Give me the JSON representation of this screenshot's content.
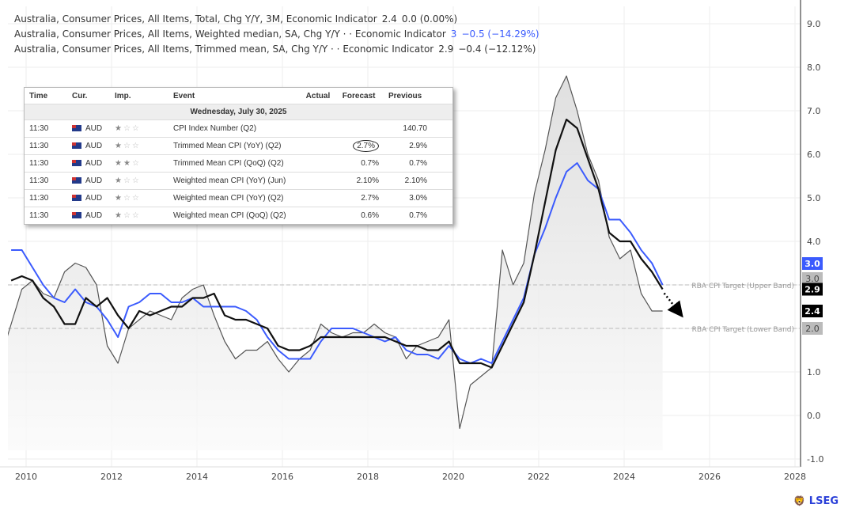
{
  "legend": [
    {
      "name": "Australia, Consumer Prices, All Items, Total, Chg Y/Y, 3M, Economic Indicator",
      "value": "2.4",
      "change": "0.0 (0.00%)",
      "color": "#555555"
    },
    {
      "name": "Australia, Consumer Prices, All Items, Weighted median, SA, Chg Y/Y · · Economic Indicator",
      "value": "3",
      "change": "−0.5 (−14.29%)",
      "color": "#3b5bfd"
    },
    {
      "name": "Australia, Consumer Prices, All Items, Trimmed mean, SA, Chg Y/Y · · Economic Indicator",
      "value": "2.9",
      "change": "−0.4 (−12.12%)",
      "color": "#111111"
    }
  ],
  "calendar": {
    "headers": {
      "time": "Time",
      "cur": "Cur.",
      "imp": "Imp.",
      "event": "Event",
      "actual": "Actual",
      "forecast": "Forecast",
      "previous": "Previous"
    },
    "date": "Wednesday, July 30, 2025",
    "rows": [
      {
        "time": "11:30",
        "cur": "AUD",
        "imp": 1,
        "event": "CPI Index Number (Q2)",
        "actual": "",
        "forecast": "",
        "previous": "140.70"
      },
      {
        "time": "11:30",
        "cur": "AUD",
        "imp": 1,
        "event": "Trimmed Mean CPI (YoY) (Q2)",
        "actual": "",
        "forecast": "2.7%",
        "previous": "2.9%",
        "highlight": true
      },
      {
        "time": "11:30",
        "cur": "AUD",
        "imp": 2,
        "event": "Trimmed Mean CPI (QoQ) (Q2)",
        "actual": "",
        "forecast": "0.7%",
        "previous": "0.7%"
      },
      {
        "time": "11:30",
        "cur": "AUD",
        "imp": 1,
        "event": "Weighted mean CPI (YoY) (Jun)",
        "actual": "",
        "forecast": "2.10%",
        "previous": "2.10%"
      },
      {
        "time": "11:30",
        "cur": "AUD",
        "imp": 1,
        "event": "Weighted mean CPI (YoY) (Q2)",
        "actual": "",
        "forecast": "2.7%",
        "previous": "3.0%"
      },
      {
        "time": "11:30",
        "cur": "AUD",
        "imp": 1,
        "event": "Weighted mean CPI (QoQ) (Q2)",
        "actual": "",
        "forecast": "0.6%",
        "previous": "0.7%"
      }
    ]
  },
  "brand": "LSEG",
  "chart_data": {
    "type": "line",
    "xlim": [
      2009.6,
      2028.1
    ],
    "ylim": [
      -1.2,
      9.4
    ],
    "x_ticks": [
      "2010",
      "2012",
      "2014",
      "2016",
      "2018",
      "2020",
      "2022",
      "2024",
      "2026",
      "2028"
    ],
    "y_ticks": [
      "9.0",
      "8.0",
      "7.0",
      "6.0",
      "5.0",
      "4.0",
      "3.0",
      "2.0",
      "1.0",
      "0.0",
      "-1.0"
    ],
    "grid": true,
    "start_quarter": "2009Q3",
    "series": [
      {
        "name": "Australia, Consumer Prices, All Items, Total, Chg Y/Y, 3M",
        "color": "#555555",
        "values": [
          1.3,
          2.1,
          2.9,
          3.1,
          2.8,
          2.7,
          3.3,
          3.5,
          3.4,
          3.0,
          1.6,
          1.2,
          2.0,
          2.2,
          2.4,
          2.3,
          2.2,
          2.7,
          2.9,
          3.0,
          2.3,
          1.7,
          1.3,
          1.5,
          1.5,
          1.7,
          1.3,
          1.0,
          1.3,
          1.5,
          2.1,
          1.9,
          1.8,
          1.9,
          1.9,
          2.1,
          1.9,
          1.8,
          1.3,
          1.6,
          1.7,
          1.8,
          2.2,
          -0.3,
          0.7,
          0.9,
          1.1,
          3.8,
          3.0,
          3.5,
          5.1,
          6.1,
          7.3,
          7.8,
          7.0,
          6.0,
          5.4,
          4.1,
          3.6,
          3.8,
          2.8,
          2.4,
          2.4
        ]
      },
      {
        "name": "Australia, Consumer Prices, All Items, Weighted median, SA, Chg Y/Y",
        "color": "#3b5bfd",
        "values": [
          null,
          3.8,
          3.8,
          3.4,
          3.0,
          2.7,
          2.6,
          2.9,
          2.6,
          2.5,
          2.2,
          1.8,
          2.5,
          2.6,
          2.8,
          2.8,
          2.6,
          2.6,
          2.7,
          2.5,
          2.5,
          2.5,
          2.5,
          2.4,
          2.2,
          1.8,
          1.5,
          1.3,
          1.3,
          1.3,
          1.7,
          2.0,
          2.0,
          2.0,
          1.9,
          1.8,
          1.7,
          1.8,
          1.5,
          1.4,
          1.4,
          1.3,
          1.6,
          1.3,
          1.2,
          1.3,
          1.2,
          1.7,
          2.2,
          2.7,
          3.7,
          4.3,
          5.0,
          5.6,
          5.8,
          5.4,
          5.2,
          4.5,
          4.5,
          4.2,
          3.8,
          3.5,
          3.0
        ]
      },
      {
        "name": "Australia, Consumer Prices, All Items, Trimmed mean, SA, Chg Y/Y",
        "color": "#111111",
        "values": [
          null,
          3.1,
          3.2,
          3.1,
          2.7,
          2.5,
          2.1,
          2.1,
          2.7,
          2.5,
          2.7,
          2.3,
          2.0,
          2.4,
          2.3,
          2.4,
          2.5,
          2.5,
          2.7,
          2.7,
          2.8,
          2.3,
          2.2,
          2.2,
          2.1,
          2.0,
          1.6,
          1.5,
          1.5,
          1.6,
          1.8,
          1.8,
          1.8,
          1.8,
          1.8,
          1.8,
          1.8,
          1.7,
          1.6,
          1.6,
          1.5,
          1.5,
          1.7,
          1.2,
          1.2,
          1.2,
          1.1,
          1.6,
          2.1,
          2.6,
          3.7,
          4.9,
          6.1,
          6.8,
          6.6,
          5.9,
          5.2,
          4.2,
          4.0,
          4.0,
          3.6,
          3.3,
          2.9
        ]
      }
    ],
    "reference_lines": [
      {
        "label": "RBA CPI Target (Upper Band)",
        "value": 3.0,
        "tag": "3.0"
      },
      {
        "label": "RBA CPI Target (Lower Band)",
        "value": 2.0,
        "tag": "2.0"
      }
    ],
    "last_value_tags": [
      {
        "text": "3.0",
        "value": 3.0,
        "color": "#3b5bfd"
      },
      {
        "text": "2.9",
        "value": 2.9,
        "color": "#000000"
      },
      {
        "text": "2.4",
        "value": 2.4,
        "color": "#000000"
      }
    ],
    "annotation": "dotted arrow projecting trimmed mean lower"
  }
}
